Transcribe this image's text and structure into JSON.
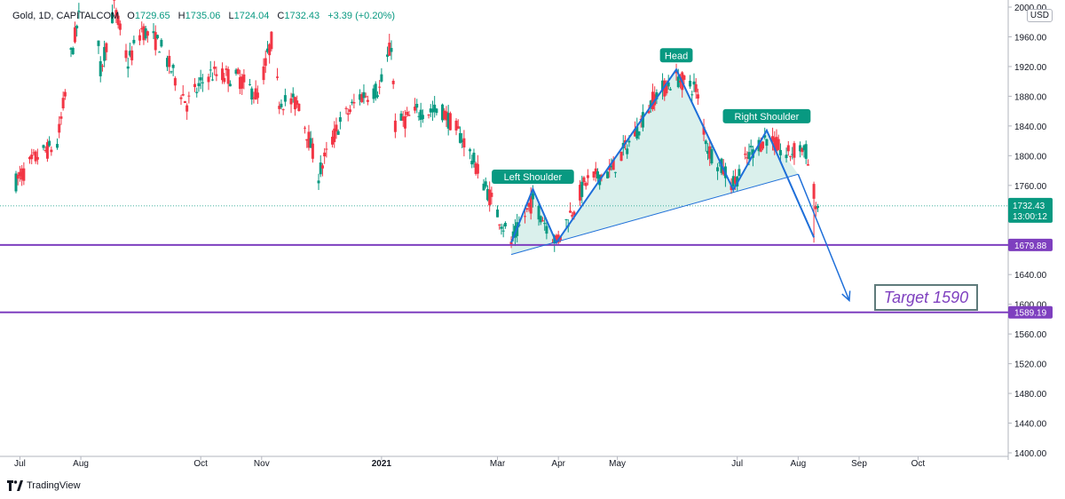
{
  "header": {
    "symbol": "Gold, 1D, CAPITALCOM",
    "open_label": "O",
    "open": "1729.65",
    "high_label": "H",
    "high": "1735.06",
    "low_label": "L",
    "low": "1724.04",
    "close_label": "C",
    "close": "1732.43",
    "change": "+3.39 (+0.20%)"
  },
  "currency": "USD",
  "brand": "TradingView",
  "colors": {
    "up": "#089981",
    "down": "#f23645",
    "pattern": "#1e6fd9",
    "fill": "#d4ede9",
    "level": "#7e3fbf",
    "label_bg": "#089981"
  },
  "chart_data": {
    "type": "candlestick",
    "symbol": "Gold",
    "timeframe": "1D",
    "ylim": [
      1400,
      2000
    ],
    "y_ticks": [
      "1400.00",
      "1440.00",
      "1480.00",
      "1520.00",
      "1560.00",
      "1600.00",
      "1640.00",
      "1680.00",
      "1720.00",
      "1760.00",
      "1800.00",
      "1840.00",
      "1880.00",
      "1920.00",
      "1960.00",
      "2000.00"
    ],
    "x_ticks": [
      "Jul",
      "Aug",
      "Oct",
      "Nov",
      "2021",
      "Mar",
      "Apr",
      "May",
      "Jul",
      "Aug",
      "Sep",
      "Oct"
    ],
    "current_price": "1732.43",
    "countdown": "13:00:12",
    "levels": [
      {
        "label": "1679.88",
        "value": 1679.88
      },
      {
        "label": "1589.19",
        "value": 1589.19
      }
    ],
    "pattern_points": [
      {
        "date": "2021-03-08",
        "price": 1683
      },
      {
        "date": "2021-03-19",
        "price": 1755
      },
      {
        "date": "2021-03-31",
        "price": 1683
      },
      {
        "date": "2021-05-31",
        "price": 1916
      },
      {
        "date": "2021-06-29",
        "price": 1754
      },
      {
        "date": "2021-07-16",
        "price": 1834
      },
      {
        "date": "2021-08-09",
        "price": 1690
      }
    ],
    "neckline": [
      {
        "date": "2021-03-08",
        "price": 1667
      },
      {
        "date": "2021-08-01",
        "price": 1775
      }
    ],
    "projection": [
      {
        "date": "2021-08-01",
        "price": 1775
      },
      {
        "date": "2021-08-27",
        "price": 1605
      }
    ],
    "annotations": [
      {
        "text": "Left Shoulder",
        "date": "2021-03-19",
        "price": 1755
      },
      {
        "text": "Head",
        "date": "2021-05-31",
        "price": 1916
      },
      {
        "text": "Right Shoulder",
        "date": "2021-07-16",
        "price": 1834
      },
      {
        "text": "Target 1590"
      }
    ],
    "trend_path": [
      [
        "2020-06-29",
        1765
      ],
      [
        "2020-07-10",
        1800
      ],
      [
        "2020-07-20",
        1815
      ],
      [
        "2020-07-27",
        1935
      ],
      [
        "2020-08-06",
        2060
      ],
      [
        "2020-08-11",
        1915
      ],
      [
        "2020-08-18",
        2000
      ],
      [
        "2020-08-25",
        1925
      ],
      [
        "2020-09-01",
        1970
      ],
      [
        "2020-09-10",
        1950
      ],
      [
        "2020-09-24",
        1870
      ],
      [
        "2020-10-05",
        1910
      ],
      [
        "2020-10-20",
        1905
      ],
      [
        "2020-10-30",
        1880
      ],
      [
        "2020-11-06",
        1955
      ],
      [
        "2020-11-10",
        1875
      ],
      [
        "2020-11-20",
        1870
      ],
      [
        "2020-11-30",
        1775
      ],
      [
        "2020-12-10",
        1840
      ],
      [
        "2020-12-21",
        1880
      ],
      [
        "2020-12-31",
        1890
      ],
      [
        "2021-01-06",
        1950
      ],
      [
        "2021-01-08",
        1840
      ],
      [
        "2021-01-20",
        1860
      ],
      [
        "2021-02-01",
        1860
      ],
      [
        "2021-02-12",
        1820
      ],
      [
        "2021-02-26",
        1740
      ],
      [
        "2021-03-08",
        1683
      ],
      [
        "2021-03-19",
        1740
      ],
      [
        "2021-03-31",
        1683
      ],
      [
        "2021-04-15",
        1765
      ],
      [
        "2021-04-28",
        1780
      ],
      [
        "2021-05-10",
        1830
      ],
      [
        "2021-05-20",
        1880
      ],
      [
        "2021-05-31",
        1905
      ],
      [
        "2021-06-10",
        1890
      ],
      [
        "2021-06-16",
        1810
      ],
      [
        "2021-06-29",
        1762
      ],
      [
        "2021-07-08",
        1805
      ],
      [
        "2021-07-16",
        1825
      ],
      [
        "2021-07-26",
        1800
      ],
      [
        "2021-08-02",
        1812
      ],
      [
        "2021-08-05",
        1805
      ],
      [
        "2021-08-09",
        1735
      ],
      [
        "2021-08-11",
        1732
      ]
    ]
  }
}
